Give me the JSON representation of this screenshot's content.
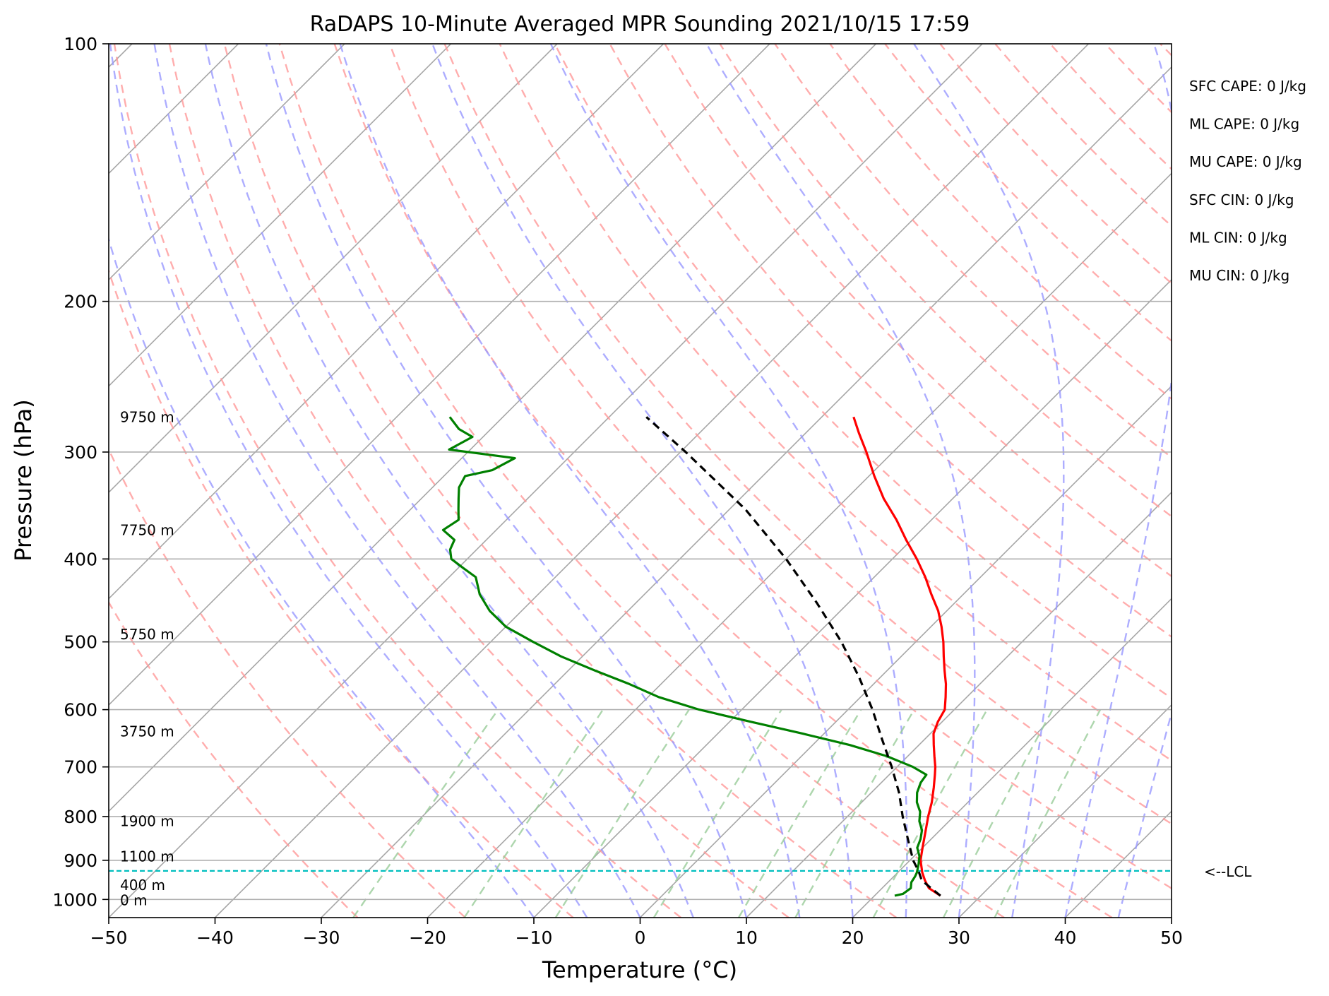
{
  "chart_data": {
    "type": "line",
    "subtype": "skew-T log-P sounding",
    "title": "RaDAPS 10-Minute Averaged MPR Sounding 2021/10/15 17:59",
    "xlabel": "Temperature (°C)",
    "ylabel": "Pressure (hPa)",
    "xlim": [
      -50,
      50
    ],
    "ylim": [
      1050,
      100
    ],
    "y_scale": "log",
    "grid": true,
    "x_ticks": [
      "−50",
      "−40",
      "−30",
      "−20",
      "−10",
      "0",
      "10",
      "20",
      "30",
      "40",
      "50"
    ],
    "x_tick_values": [
      -50,
      -40,
      -30,
      -20,
      -10,
      0,
      10,
      20,
      30,
      40,
      50
    ],
    "y_ticks": [
      "100",
      "200",
      "300",
      "400",
      "500",
      "600",
      "700",
      "800",
      "900",
      "1000"
    ],
    "y_tick_values": [
      100,
      200,
      300,
      400,
      500,
      600,
      700,
      800,
      900,
      1000
    ],
    "height_labels": [
      {
        "text": "9750 m",
        "p": 273
      },
      {
        "text": "7750 m",
        "p": 370
      },
      {
        "text": "5750 m",
        "p": 490
      },
      {
        "text": "3750 m",
        "p": 636
      },
      {
        "text": "1900 m",
        "p": 810
      },
      {
        "text": "1100 m",
        "p": 891
      },
      {
        "text": "400 m",
        "p": 962
      },
      {
        "text": "0 m",
        "p": 1002
      }
    ],
    "indices": [
      "SFC CAPE: 0 J/kg",
      "ML CAPE: 0 J/kg",
      "MU CAPE: 0 J/kg",
      "SFC CIN: 0 J/kg",
      "ML CIN: 0 J/kg",
      "MU CIN: 0 J/kg"
    ],
    "lcl": {
      "label": "<--LCL",
      "p": 926
    },
    "colors": {
      "temperature": "#ff0000",
      "dewpoint": "#008000",
      "parcel": "#000000",
      "lcl": "#00bfbf",
      "dry_adiabat": "#ff9999",
      "moist_adiabat": "#9999ff",
      "mixing_ratio": "#99cc99",
      "isotherm": "#a6a6a6"
    },
    "series": [
      {
        "key": "temperature",
        "p": [
          990,
          970,
          950,
          930,
          900,
          870,
          840,
          800,
          770,
          740,
          715,
          700,
          680,
          660,
          640,
          620,
          600,
          580,
          560,
          540,
          520,
          500,
          480,
          460,
          440,
          420,
          400,
          380,
          360,
          340,
          320,
          300,
          285,
          273
        ],
        "t": [
          26.2,
          24.4,
          23.3,
          22.3,
          21.0,
          20.0,
          19.0,
          17.6,
          16.6,
          15.4,
          14.3,
          13.6,
          12.5,
          11.4,
          10.3,
          9.6,
          9.1,
          8.0,
          6.8,
          5.4,
          4.0,
          2.6,
          1.0,
          -0.8,
          -3.0,
          -5.2,
          -7.7,
          -10.5,
          -13.3,
          -16.5,
          -19.5,
          -22.5,
          -25.0,
          -27.0
        ]
      },
      {
        "key": "dewpoint",
        "p": [
          990,
          985,
          970,
          955,
          940,
          930,
          910,
          890,
          870,
          850,
          830,
          810,
          790,
          770,
          750,
          730,
          715,
          700,
          680,
          660,
          640,
          620,
          600,
          580,
          560,
          540,
          520,
          500,
          480,
          460,
          440,
          420,
          410,
          400,
          390,
          380,
          370,
          360,
          350,
          340,
          330,
          320,
          315,
          305,
          298,
          288,
          282,
          273
        ],
        "t": [
          21.9,
          22.5,
          22.7,
          22.2,
          22.0,
          21.8,
          21.2,
          20.5,
          19.5,
          19.0,
          18.3,
          17.2,
          16.4,
          15.2,
          14.3,
          13.7,
          13.5,
          11.5,
          8.0,
          3.5,
          -2.0,
          -8.0,
          -14.0,
          -19.0,
          -23.0,
          -27.5,
          -32.0,
          -36.0,
          -40.0,
          -43.0,
          -45.5,
          -47.5,
          -49.5,
          -51.5,
          -52.5,
          -53.0,
          -55.0,
          -54.5,
          -55.5,
          -56.5,
          -57.5,
          -58.0,
          -56.0,
          -55.0,
          -62.0,
          -61.0,
          -63.0,
          -65.0
        ]
      },
      {
        "key": "parcel",
        "p": [
          990,
          970,
          950,
          926,
          900,
          850,
          800,
          750,
          700,
          650,
          600,
          550,
          500,
          450,
          400,
          350,
          300,
          273
        ],
        "t": [
          26.2,
          24.6,
          23.0,
          21.8,
          20.3,
          17.8,
          15.2,
          12.6,
          9.5,
          6.0,
          2.3,
          -2.0,
          -7.0,
          -13.0,
          -20.0,
          -28.5,
          -39.5,
          -46.5
        ]
      }
    ]
  }
}
